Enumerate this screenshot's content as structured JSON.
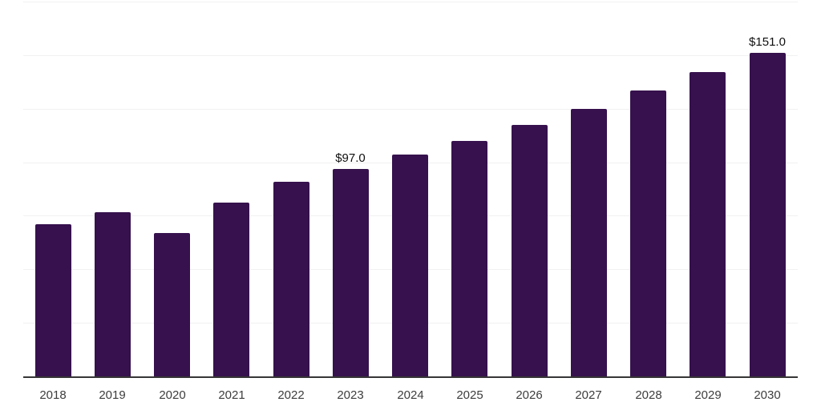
{
  "chart_data": {
    "type": "bar",
    "title": "",
    "xlabel": "",
    "ylabel": "",
    "categories": [
      "2018",
      "2019",
      "2020",
      "2021",
      "2022",
      "2023",
      "2024",
      "2025",
      "2026",
      "2027",
      "2028",
      "2029",
      "2030"
    ],
    "values": [
      71,
      76.5,
      67,
      81,
      91,
      97,
      103.5,
      110,
      117.5,
      125,
      133.5,
      142,
      151
    ],
    "data_labels": [
      {
        "category": "2023",
        "text": "$97.0"
      },
      {
        "category": "2030",
        "text": "$151.0"
      }
    ],
    "ylim": [
      0,
      175
    ],
    "gridline_step": 25,
    "grid": true,
    "legend_position": "none",
    "colors": {
      "bar": "#36114D",
      "gridline": "#f1f1f1",
      "axis_line": "#363636",
      "tick_label": "#3d3d3d",
      "data_label": "#101010",
      "background": "#ffffff"
    }
  }
}
